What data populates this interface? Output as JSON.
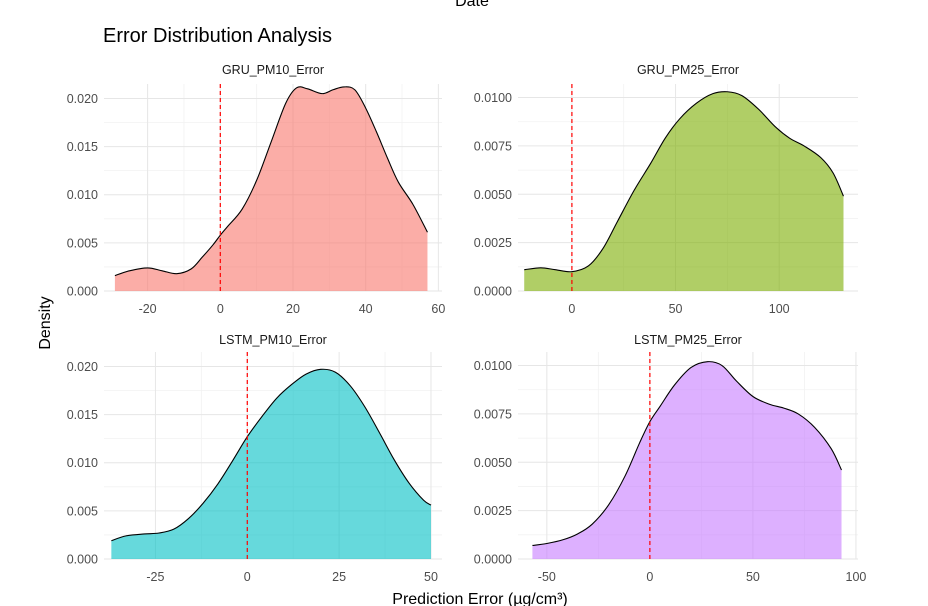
{
  "top_clip_text": "Date",
  "chart_data": {
    "type": "area",
    "title": "Error Distribution Analysis",
    "xlabel": "Prediction Error (µg/cm³)",
    "ylabel": "Density",
    "reference_line": {
      "x": 0,
      "color": "#ff0000",
      "style": "dashed"
    },
    "panels": [
      {
        "name": "GRU_PM10_Error",
        "fill": "#F8766D",
        "xlim": [
          -32,
          61
        ],
        "ylim": [
          0,
          0.0215
        ],
        "xticks": [
          -20,
          0,
          20,
          40,
          60
        ],
        "xtick_labels": [
          "-20",
          "0",
          "20",
          "40",
          "60"
        ],
        "yticks": [
          0,
          0.005,
          0.01,
          0.015,
          0.02
        ],
        "ytick_labels": [
          "0.000",
          "0.005",
          "0.010",
          "0.015",
          "0.020"
        ],
        "x": [
          -29,
          -25,
          -20,
          -16,
          -12,
          -8,
          -5,
          -2,
          0,
          2,
          6,
          10,
          14,
          18,
          21,
          24,
          28,
          31,
          34,
          37,
          40,
          43,
          46,
          49,
          53,
          57
        ],
        "y": [
          0.0016,
          0.0021,
          0.0024,
          0.0021,
          0.0018,
          0.0023,
          0.0035,
          0.0048,
          0.0058,
          0.0067,
          0.0085,
          0.0115,
          0.0155,
          0.0195,
          0.0211,
          0.021,
          0.0205,
          0.0209,
          0.0212,
          0.0209,
          0.019,
          0.0165,
          0.0138,
          0.0113,
          0.009,
          0.0061
        ]
      },
      {
        "name": "GRU_PM25_Error",
        "fill": "#7CAE00",
        "xlim": [
          -26,
          138
        ],
        "ylim": [
          0,
          0.0107
        ],
        "xticks": [
          0,
          50,
          100
        ],
        "xtick_labels": [
          "0",
          "50",
          "100"
        ],
        "yticks": [
          0,
          0.0025,
          0.005,
          0.0075,
          0.01
        ],
        "ytick_labels": [
          "0.0000",
          "0.0025",
          "0.0050",
          "0.0075",
          "0.0100"
        ],
        "x": [
          -23,
          -15,
          -8,
          0,
          8,
          15,
          22,
          30,
          38,
          45,
          52,
          60,
          68,
          75,
          82,
          90,
          98,
          105,
          112,
          120,
          126,
          131
        ],
        "y": [
          0.0011,
          0.0012,
          0.0011,
          0.001,
          0.0013,
          0.0022,
          0.0036,
          0.0052,
          0.0066,
          0.0079,
          0.0089,
          0.0097,
          0.0102,
          0.0103,
          0.0101,
          0.0094,
          0.0085,
          0.0079,
          0.0075,
          0.0069,
          0.0061,
          0.0049
        ]
      },
      {
        "name": "LSTM_PM10_Error",
        "fill": "#00BFC4",
        "xlim": [
          -39,
          53
        ],
        "ylim": [
          0,
          0.0215
        ],
        "xticks": [
          -25,
          0,
          25,
          50
        ],
        "xtick_labels": [
          "-25",
          "0",
          "25",
          "50"
        ],
        "yticks": [
          0,
          0.005,
          0.01,
          0.015,
          0.02
        ],
        "ytick_labels": [
          "0.000",
          "0.005",
          "0.010",
          "0.015",
          "0.020"
        ],
        "x": [
          -37,
          -33,
          -28,
          -24,
          -20,
          -16,
          -12,
          -8,
          -4,
          0,
          4,
          8,
          12,
          16,
          20,
          24,
          28,
          32,
          36,
          40,
          44,
          48,
          50
        ],
        "y": [
          0.0019,
          0.0024,
          0.0026,
          0.0027,
          0.0031,
          0.0042,
          0.0058,
          0.0078,
          0.0102,
          0.0127,
          0.0148,
          0.0167,
          0.0181,
          0.0192,
          0.0197,
          0.0194,
          0.018,
          0.0158,
          0.0131,
          0.0103,
          0.0079,
          0.0061,
          0.0056
        ]
      },
      {
        "name": "LSTM_PM25_Error",
        "fill": "#C77CFF",
        "xlim": [
          -64,
          101
        ],
        "ylim": [
          0,
          0.0107
        ],
        "xticks": [
          -50,
          0,
          50,
          100
        ],
        "xtick_labels": [
          "-50",
          "0",
          "50",
          "100"
        ],
        "yticks": [
          0,
          0.0025,
          0.005,
          0.0075,
          0.01
        ],
        "ytick_labels": [
          "0.0000",
          "0.0025",
          "0.0050",
          "0.0075",
          "0.0100"
        ],
        "x": [
          -57,
          -50,
          -42,
          -35,
          -28,
          -20,
          -12,
          -5,
          0,
          5,
          12,
          20,
          28,
          35,
          42,
          50,
          58,
          65,
          72,
          80,
          88,
          93
        ],
        "y": [
          0.0007,
          0.0008,
          0.001,
          0.0013,
          0.0018,
          0.0028,
          0.0043,
          0.006,
          0.0071,
          0.0079,
          0.009,
          0.0099,
          0.0102,
          0.01,
          0.0092,
          0.0084,
          0.008,
          0.0078,
          0.0075,
          0.0068,
          0.0057,
          0.0046
        ]
      }
    ]
  }
}
